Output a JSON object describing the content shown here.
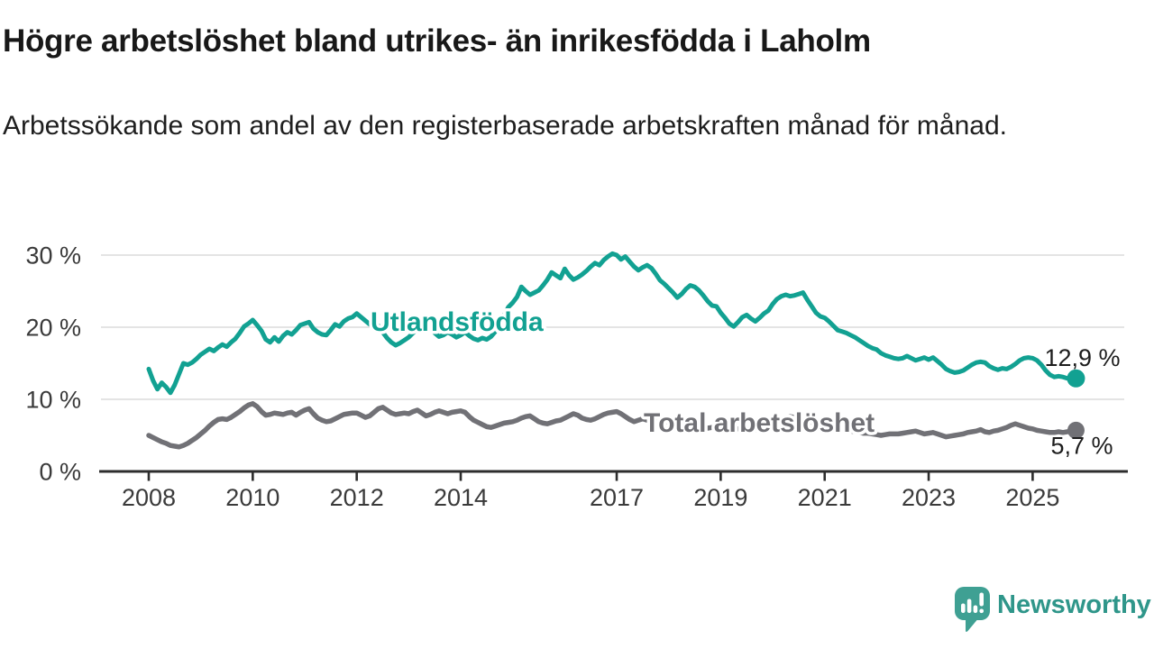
{
  "header": {
    "title": "Högre arbetslöshet bland utrikes- än inrikesfödda i Laholm",
    "subtitle": "Arbetssökande som andel av den registerbaserade arbetskraften månad för månad."
  },
  "chart_data": {
    "type": "line",
    "title": "Högre arbetslöshet bland utrikes- än inrikesfödda i Laholm",
    "subtitle": "Arbetssökande som andel av den registerbaserade arbetskraften månad för månad.",
    "unit": "%",
    "x_start": "2008-01",
    "x_step_months": 1,
    "x_end": "2025-11",
    "ylim": [
      0,
      31
    ],
    "grid": "horizontal",
    "legend_position": "inline-labels",
    "y_ticks": [
      {
        "value": 0,
        "label": "0 %"
      },
      {
        "value": 10,
        "label": "10 %"
      },
      {
        "value": 20,
        "label": "20 %"
      },
      {
        "value": 30,
        "label": "30 %"
      }
    ],
    "x_ticks": [
      {
        "year": 2008,
        "label": "2008"
      },
      {
        "year": 2010,
        "label": "2010"
      },
      {
        "year": 2012,
        "label": "2012"
      },
      {
        "year": 2014,
        "label": "2014"
      },
      {
        "year": 2017,
        "label": "2017"
      },
      {
        "year": 2019,
        "label": "2019"
      },
      {
        "year": 2021,
        "label": "2021"
      },
      {
        "year": 2023,
        "label": "2023"
      },
      {
        "year": 2025,
        "label": "2025"
      }
    ],
    "series": [
      {
        "id": "utlandsfodda",
        "name": "Utlandsfödda",
        "color": "#12A192",
        "end_label": "12,9 %",
        "latest_value": 12.9,
        "values": [
          14.2,
          12.6,
          11.4,
          12.3,
          11.7,
          10.9,
          12.0,
          13.5,
          15.0,
          14.8,
          15.1,
          15.6,
          16.2,
          16.6,
          17.0,
          16.7,
          17.2,
          17.6,
          17.3,
          17.9,
          18.4,
          19.2,
          20.1,
          20.5,
          21.0,
          20.3,
          19.5,
          18.3,
          17.9,
          18.6,
          18.0,
          18.8,
          19.3,
          19.0,
          19.6,
          20.3,
          20.5,
          20.7,
          19.8,
          19.3,
          19.0,
          18.9,
          19.6,
          20.4,
          20.1,
          20.8,
          21.2,
          21.4,
          21.9,
          21.4,
          20.9,
          20.4,
          20.7,
          20.2,
          19.3,
          18.5,
          17.9,
          17.5,
          17.8,
          18.2,
          18.6,
          19.2,
          19.8,
          20.9,
          20.4,
          19.8,
          19.2,
          18.7,
          18.9,
          19.3,
          19.0,
          18.6,
          18.9,
          19.3,
          18.8,
          18.4,
          18.2,
          18.5,
          18.3,
          18.7,
          19.4,
          20.5,
          21.6,
          22.8,
          23.4,
          24.2,
          25.6,
          25.0,
          24.5,
          24.8,
          25.1,
          25.8,
          26.6,
          27.6,
          27.2,
          26.8,
          28.1,
          27.2,
          26.6,
          26.9,
          27.3,
          27.8,
          28.4,
          28.9,
          28.6,
          29.3,
          29.8,
          30.2,
          30.0,
          29.4,
          29.8,
          29.1,
          28.4,
          27.9,
          28.3,
          28.6,
          28.2,
          27.4,
          26.5,
          26.0,
          25.4,
          24.8,
          24.1,
          24.6,
          25.3,
          25.8,
          25.6,
          25.1,
          24.4,
          23.6,
          23.0,
          22.9,
          22.0,
          21.3,
          20.5,
          20.1,
          20.7,
          21.4,
          21.7,
          21.2,
          20.8,
          21.3,
          21.9,
          22.3,
          23.2,
          23.9,
          24.3,
          24.5,
          24.3,
          24.4,
          24.6,
          24.8,
          23.8,
          22.9,
          22.0,
          21.5,
          21.3,
          20.8,
          20.2,
          19.6,
          19.4,
          19.2,
          18.9,
          18.6,
          18.2,
          17.8,
          17.4,
          17.1,
          16.9,
          16.4,
          16.1,
          15.9,
          15.7,
          15.6,
          15.7,
          16.0,
          15.7,
          15.4,
          15.6,
          15.8,
          15.5,
          15.8,
          15.3,
          14.8,
          14.2,
          13.9,
          13.7,
          13.8,
          14.0,
          14.4,
          14.8,
          15.1,
          15.2,
          15.1,
          14.6,
          14.3,
          14.1,
          14.3,
          14.2,
          14.5,
          14.9,
          15.4,
          15.7,
          15.8,
          15.7,
          15.4,
          14.8,
          14.0,
          13.4,
          13.1,
          13.2,
          13.1,
          12.9,
          12.8,
          12.9
        ]
      },
      {
        "id": "total-arbetsloshet",
        "name": "Total arbetslöshet",
        "color": "#717176",
        "end_label": "5,7 %",
        "latest_value": 5.7,
        "values": [
          5.0,
          4.7,
          4.4,
          4.1,
          3.9,
          3.6,
          3.5,
          3.4,
          3.6,
          3.9,
          4.3,
          4.7,
          5.2,
          5.7,
          6.3,
          6.8,
          7.2,
          7.3,
          7.2,
          7.5,
          7.9,
          8.3,
          8.8,
          9.2,
          9.4,
          9.0,
          8.3,
          7.8,
          7.9,
          8.1,
          8.0,
          7.9,
          8.1,
          8.2,
          7.8,
          8.2,
          8.5,
          8.7,
          8.0,
          7.4,
          7.1,
          6.9,
          7.0,
          7.3,
          7.6,
          7.9,
          8.0,
          8.1,
          8.1,
          7.8,
          7.5,
          7.7,
          8.2,
          8.7,
          8.9,
          8.5,
          8.1,
          7.9,
          8.0,
          8.1,
          8.0,
          8.3,
          8.5,
          8.1,
          7.7,
          7.9,
          8.2,
          8.4,
          8.2,
          8.0,
          8.2,
          8.3,
          8.4,
          8.2,
          7.6,
          7.1,
          6.8,
          6.5,
          6.2,
          6.1,
          6.3,
          6.5,
          6.7,
          6.8,
          6.9,
          7.1,
          7.4,
          7.6,
          7.7,
          7.3,
          6.9,
          6.7,
          6.6,
          6.8,
          7.0,
          7.1,
          7.4,
          7.7,
          8.0,
          7.8,
          7.4,
          7.2,
          7.1,
          7.3,
          7.6,
          7.9,
          8.1,
          8.2,
          8.3,
          8.0,
          7.6,
          7.2,
          6.9,
          7.1,
          7.3,
          7.1,
          6.9,
          6.8,
          6.9,
          7.0,
          6.8,
          6.6,
          6.4,
          6.3,
          6.4,
          6.5,
          6.4,
          6.2,
          6.1,
          6.0,
          6.1,
          6.2,
          6.1,
          6.0,
          5.9,
          5.8,
          5.9,
          6.0,
          6.1,
          5.9,
          5.8,
          5.9,
          6.0,
          6.1,
          6.3,
          6.5,
          7.0,
          7.4,
          7.6,
          7.5,
          7.4,
          7.2,
          7.0,
          6.8,
          6.6,
          6.5,
          6.4,
          6.3,
          6.1,
          5.9,
          5.8,
          5.7,
          5.6,
          5.5,
          5.4,
          5.3,
          5.3,
          5.2,
          5.1,
          5.0,
          5.1,
          5.2,
          5.2,
          5.2,
          5.3,
          5.4,
          5.5,
          5.6,
          5.4,
          5.2,
          5.3,
          5.4,
          5.2,
          5.0,
          4.8,
          4.9,
          5.0,
          5.1,
          5.2,
          5.4,
          5.5,
          5.6,
          5.8,
          5.5,
          5.4,
          5.6,
          5.7,
          5.9,
          6.1,
          6.4,
          6.6,
          6.4,
          6.2,
          6.0,
          5.9,
          5.7,
          5.6,
          5.5,
          5.4,
          5.4,
          5.5,
          5.4,
          5.5,
          5.6,
          5.7
        ]
      }
    ]
  },
  "branding": {
    "logo_text": "Newsworthy",
    "logo_icon": "newsworthy-bars-speech-bubble-icon",
    "icon_color": "#3FA093",
    "text_color": "#2F968A"
  }
}
